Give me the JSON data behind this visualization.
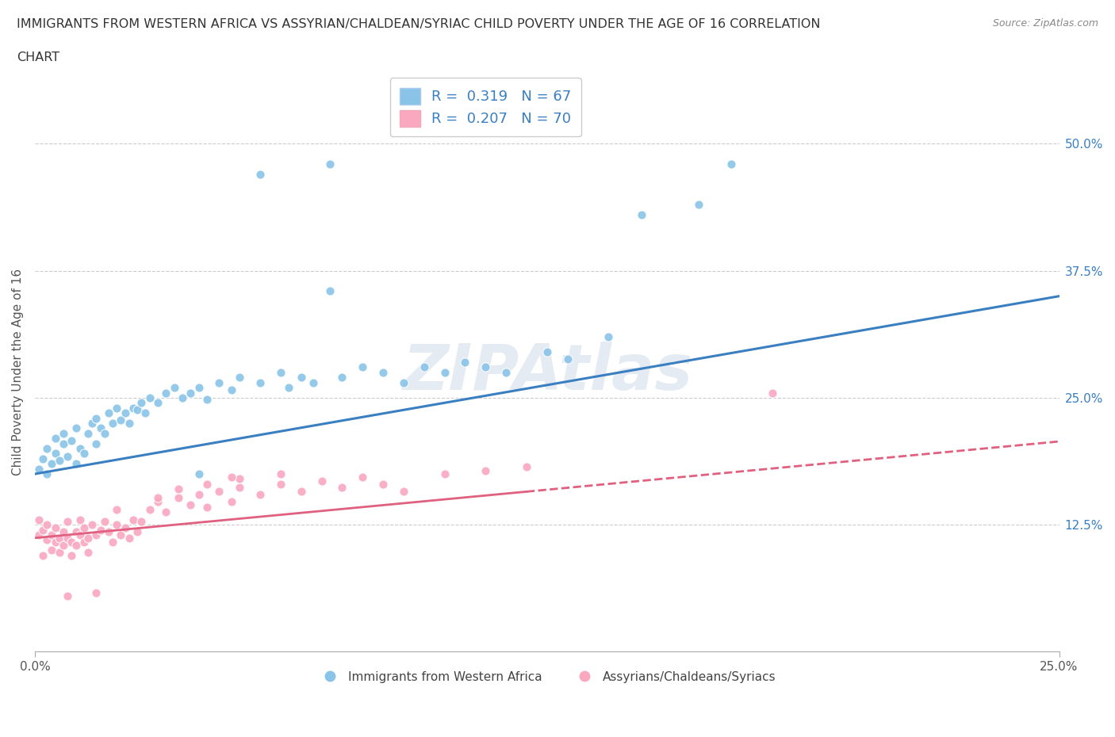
{
  "title_line1": "IMMIGRANTS FROM WESTERN AFRICA VS ASSYRIAN/CHALDEAN/SYRIAC CHILD POVERTY UNDER THE AGE OF 16 CORRELATION",
  "title_line2": "CHART",
  "source": "Source: ZipAtlas.com",
  "ylabel": "Child Poverty Under the Age of 16",
  "xlim": [
    0.0,
    0.25
  ],
  "ylim": [
    0.0,
    0.55
  ],
  "xtick_labels": [
    "0.0%",
    "25.0%"
  ],
  "ytick_labels_right": [
    "12.5%",
    "25.0%",
    "37.5%",
    "50.0%"
  ],
  "ytick_positions_right": [
    0.125,
    0.25,
    0.375,
    0.5
  ],
  "R_blue": 0.319,
  "N_blue": 67,
  "R_pink": 0.207,
  "N_pink": 70,
  "color_blue": "#89c4e8",
  "color_pink": "#f9a8c0",
  "line_blue": "#3a7fc1",
  "line_pink": "#e06080",
  "legend_label_blue": "Immigrants from Western Africa",
  "legend_label_pink": "Assyrians/Chaldeans/Syriacs",
  "watermark": "ZIPAtlas",
  "blue_intercept": 0.175,
  "blue_slope": 0.7,
  "pink_intercept": 0.112,
  "pink_slope": 0.38,
  "blue_x": [
    0.001,
    0.002,
    0.003,
    0.003,
    0.004,
    0.005,
    0.005,
    0.006,
    0.007,
    0.007,
    0.008,
    0.009,
    0.01,
    0.01,
    0.011,
    0.012,
    0.013,
    0.014,
    0.015,
    0.015,
    0.016,
    0.017,
    0.018,
    0.019,
    0.02,
    0.021,
    0.022,
    0.023,
    0.024,
    0.025,
    0.026,
    0.027,
    0.028,
    0.03,
    0.032,
    0.034,
    0.036,
    0.038,
    0.04,
    0.042,
    0.045,
    0.048,
    0.05,
    0.055,
    0.06,
    0.062,
    0.065,
    0.068,
    0.072,
    0.075,
    0.08,
    0.085,
    0.09,
    0.095,
    0.1,
    0.105,
    0.11,
    0.115,
    0.125,
    0.13,
    0.14,
    0.148,
    0.162,
    0.17,
    0.072,
    0.055,
    0.04
  ],
  "blue_y": [
    0.18,
    0.19,
    0.175,
    0.2,
    0.185,
    0.195,
    0.21,
    0.188,
    0.205,
    0.215,
    0.192,
    0.208,
    0.185,
    0.22,
    0.2,
    0.195,
    0.215,
    0.225,
    0.205,
    0.23,
    0.22,
    0.215,
    0.235,
    0.225,
    0.24,
    0.228,
    0.235,
    0.225,
    0.24,
    0.238,
    0.245,
    0.235,
    0.25,
    0.245,
    0.255,
    0.26,
    0.25,
    0.255,
    0.26,
    0.248,
    0.265,
    0.258,
    0.27,
    0.265,
    0.275,
    0.26,
    0.27,
    0.265,
    0.355,
    0.27,
    0.28,
    0.275,
    0.265,
    0.28,
    0.275,
    0.285,
    0.28,
    0.275,
    0.295,
    0.288,
    0.31,
    0.43,
    0.44,
    0.48,
    0.48,
    0.47,
    0.175
  ],
  "pink_x": [
    0.001,
    0.001,
    0.002,
    0.002,
    0.003,
    0.003,
    0.004,
    0.004,
    0.005,
    0.005,
    0.006,
    0.006,
    0.007,
    0.007,
    0.008,
    0.008,
    0.009,
    0.009,
    0.01,
    0.01,
    0.011,
    0.011,
    0.012,
    0.012,
    0.013,
    0.013,
    0.014,
    0.015,
    0.016,
    0.017,
    0.018,
    0.019,
    0.02,
    0.021,
    0.022,
    0.023,
    0.024,
    0.025,
    0.026,
    0.028,
    0.03,
    0.032,
    0.035,
    0.038,
    0.04,
    0.042,
    0.045,
    0.048,
    0.05,
    0.055,
    0.06,
    0.065,
    0.07,
    0.075,
    0.08,
    0.085,
    0.09,
    0.1,
    0.11,
    0.12,
    0.035,
    0.042,
    0.05,
    0.06,
    0.048,
    0.03,
    0.02,
    0.18,
    0.015,
    0.008
  ],
  "pink_y": [
    0.115,
    0.13,
    0.12,
    0.095,
    0.11,
    0.125,
    0.115,
    0.1,
    0.108,
    0.122,
    0.112,
    0.098,
    0.118,
    0.105,
    0.112,
    0.128,
    0.108,
    0.095,
    0.118,
    0.105,
    0.115,
    0.13,
    0.108,
    0.122,
    0.112,
    0.098,
    0.125,
    0.115,
    0.12,
    0.128,
    0.118,
    0.108,
    0.125,
    0.115,
    0.122,
    0.112,
    0.13,
    0.118,
    0.128,
    0.14,
    0.148,
    0.138,
    0.152,
    0.145,
    0.155,
    0.142,
    0.158,
    0.148,
    0.162,
    0.155,
    0.165,
    0.158,
    0.168,
    0.162,
    0.172,
    0.165,
    0.158,
    0.175,
    0.178,
    0.182,
    0.16,
    0.165,
    0.17,
    0.175,
    0.172,
    0.152,
    0.14,
    0.255,
    0.058,
    0.055
  ]
}
